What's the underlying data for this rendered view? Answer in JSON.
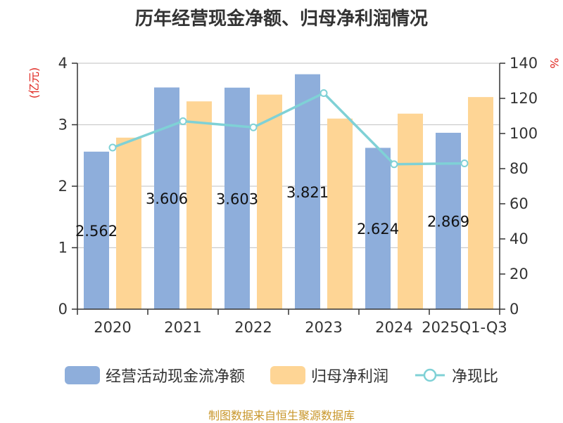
{
  "chart_data": {
    "type": "bar",
    "title": "历年经营现金净额、归母净利润情况",
    "categories": [
      "2020",
      "2021",
      "2022",
      "2023",
      "2024",
      "2025Q1-Q3"
    ],
    "left_axis": {
      "unit": "(亿元)",
      "ylim": [
        0,
        4
      ],
      "ticks": [
        "0",
        "1",
        "2",
        "3",
        "4"
      ]
    },
    "right_axis": {
      "unit": "%",
      "ylim": [
        0,
        140
      ],
      "ticks": [
        "0",
        "20",
        "40",
        "60",
        "80",
        "100",
        "120",
        "140"
      ]
    },
    "grid": true,
    "legend_position": "bottom",
    "series": [
      {
        "name": "经营活动现金流净额",
        "kind": "bar",
        "axis": "left",
        "color": "#8eaedb",
        "values": [
          2.562,
          3.606,
          3.603,
          3.821,
          2.624,
          2.869
        ],
        "labels": [
          "2.562",
          "3.606",
          "3.603",
          "3.821",
          "2.624",
          "2.869"
        ]
      },
      {
        "name": "归母净利润",
        "kind": "bar",
        "axis": "left",
        "color": "#fed595",
        "values": [
          2.79,
          3.38,
          3.49,
          3.1,
          3.18,
          3.45
        ]
      },
      {
        "name": "净现比",
        "kind": "line",
        "axis": "right",
        "color": "#7fd1d6",
        "values": [
          92,
          107,
          103.5,
          123,
          82.5,
          83
        ]
      }
    ]
  },
  "source": "制图数据来自恒生聚源数据库",
  "legend_icons": {
    "bar": "rounded-rect-swatch",
    "line": "line-circle-marker-icon"
  }
}
